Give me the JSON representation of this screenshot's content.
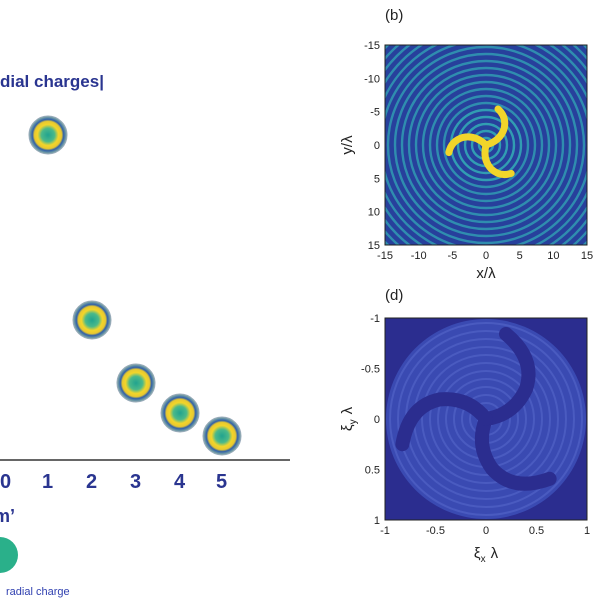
{
  "left_panel": {
    "title": "dial charges|",
    "x_ticks": [
      "0",
      "1",
      "2",
      "3",
      "4",
      "5"
    ],
    "x_label": "m’",
    "legend_text": "radial charge"
  },
  "panel_b": {
    "label": "(b)",
    "y_ticks": [
      "-15",
      "-10",
      "-5",
      "0",
      "5",
      "10",
      "15"
    ],
    "x_ticks": [
      "-15",
      "-10",
      "-5",
      "0",
      "5",
      "10",
      "15"
    ],
    "x_label": "x/λ",
    "y_label": "y/λ"
  },
  "panel_d": {
    "label": "(d)",
    "y_ticks": [
      "-1",
      "-0.5",
      "0",
      "0.5",
      "1"
    ],
    "x_ticks": [
      "-1",
      "-0.5",
      "0",
      "0.5",
      "1"
    ],
    "x_label": {
      "symbol": "ξ",
      "subscript": "x",
      "suffix": "λ"
    },
    "y_label": {
      "symbol": "ξ",
      "subscript": "y",
      "suffix": "λ"
    }
  }
}
